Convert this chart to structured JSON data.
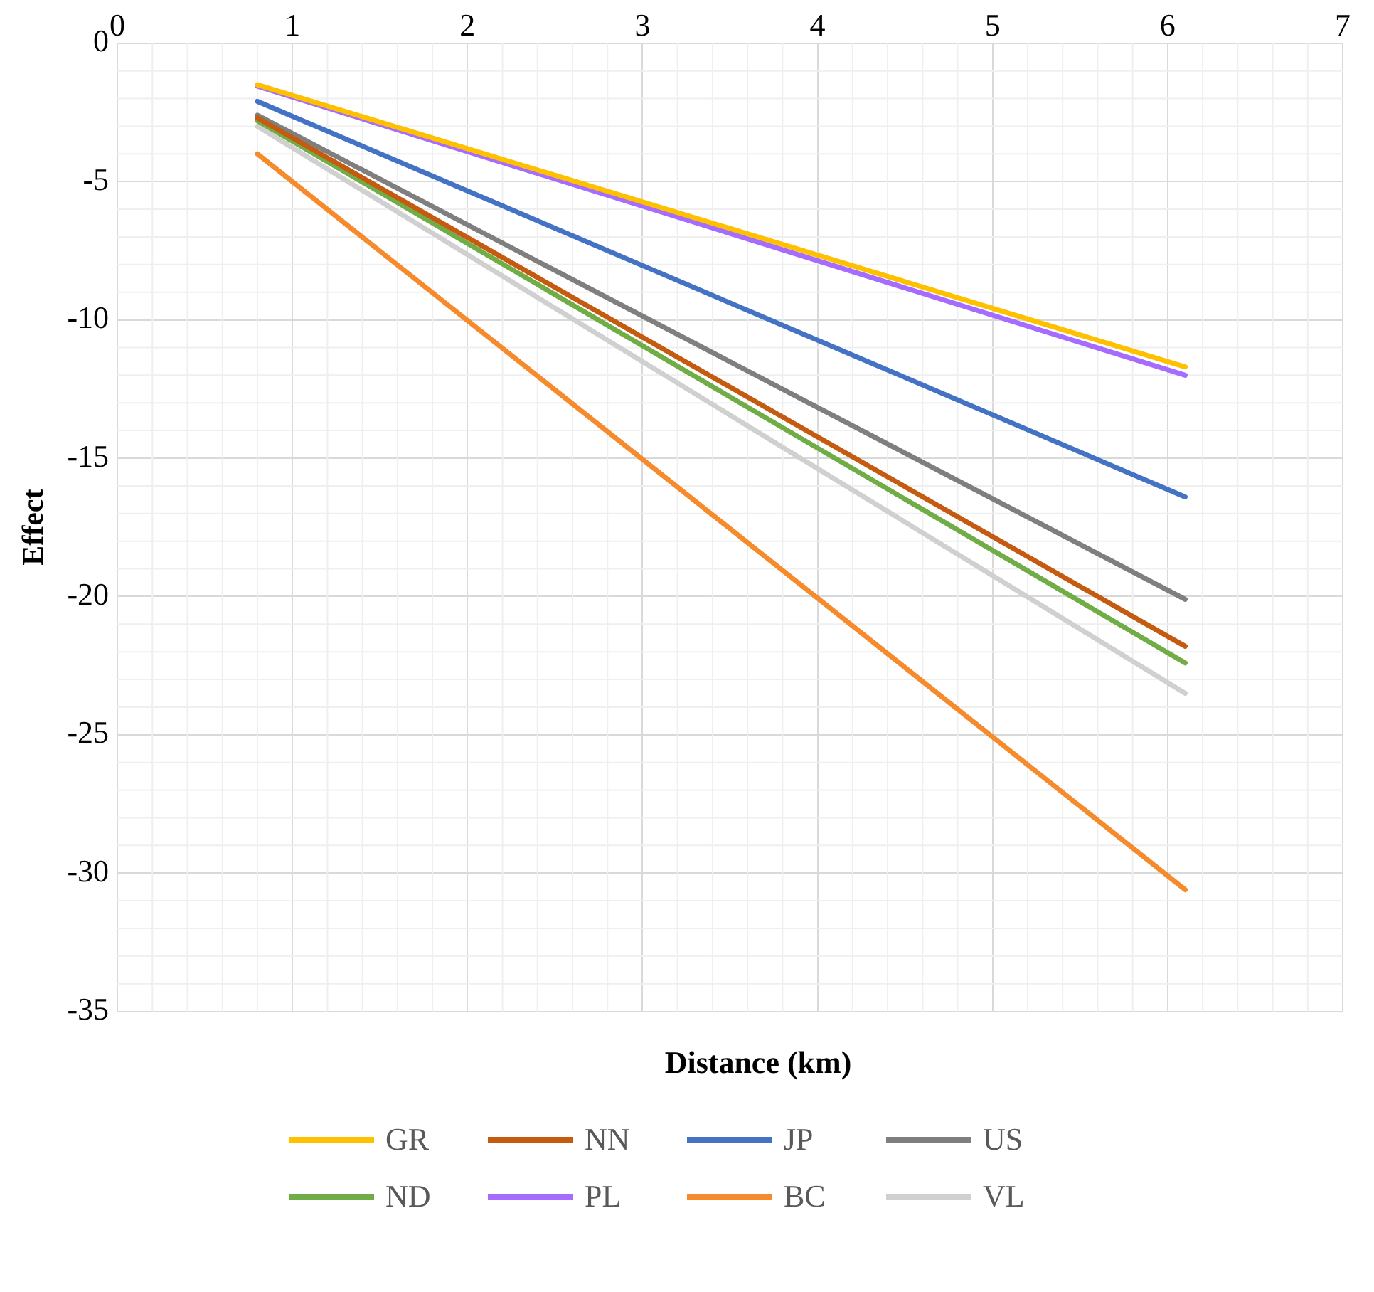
{
  "chart_data": {
    "type": "line",
    "xlabel": "Distance (km)",
    "ylabel": "Effect",
    "xlim": [
      0,
      7
    ],
    "xticks": [
      0,
      1,
      2,
      3,
      4,
      5,
      6,
      7
    ],
    "ylim": [
      -35,
      0
    ],
    "yticks": [
      -35,
      -30,
      -25,
      -20,
      -15,
      -10,
      -5,
      0
    ],
    "grid": true,
    "legend": "bottom",
    "marker": "none",
    "line_style": "solid",
    "x": [
      0.8,
      6.1
    ],
    "series": [
      {
        "name": "GR",
        "color": "#ffc000",
        "values": [
          -1.5,
          -11.7
        ]
      },
      {
        "name": "NN",
        "color": "#c55a11",
        "values": [
          -2.7,
          -21.8
        ]
      },
      {
        "name": "JP",
        "color": "#4472c4",
        "values": [
          -2.1,
          -16.4
        ]
      },
      {
        "name": "US",
        "color": "#7f7f7f",
        "values": [
          -2.6,
          -20.1
        ]
      },
      {
        "name": "ND",
        "color": "#70ad47",
        "values": [
          -2.8,
          -22.4
        ]
      },
      {
        "name": "PL",
        "color": "#a66cff",
        "values": [
          -1.55,
          -12.0
        ]
      },
      {
        "name": "BC",
        "color": "#f58b2c",
        "values": [
          -4.0,
          -30.6
        ]
      },
      {
        "name": "VL",
        "color": "#d0d0d0",
        "values": [
          -3.0,
          -23.5
        ]
      }
    ]
  }
}
